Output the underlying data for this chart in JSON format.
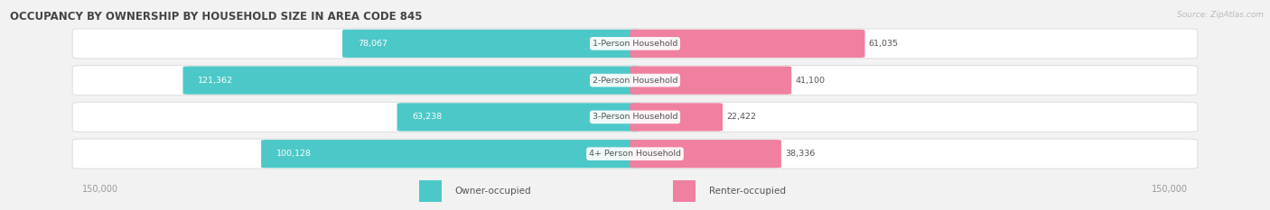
{
  "title": "OCCUPANCY BY OWNERSHIP BY HOUSEHOLD SIZE IN AREA CODE 845",
  "source": "Source: ZipAtlas.com",
  "categories": [
    "1-Person Household",
    "2-Person Household",
    "3-Person Household",
    "4+ Person Household"
  ],
  "owner_values": [
    78067,
    121362,
    63238,
    100128
  ],
  "renter_values": [
    61035,
    41100,
    22422,
    38336
  ],
  "owner_color": "#4dc8c8",
  "renter_color": "#f080a0",
  "owner_label": "Owner-occupied",
  "renter_label": "Renter-occupied",
  "axis_max": 150000,
  "bg_color": "#f2f2f2",
  "bar_bg_color": "#ffffff",
  "bar_bg_edge": "#e0e0e0",
  "title_color": "#444444",
  "value_color_dark": "#555555",
  "value_color_white": "#ffffff",
  "axis_label_color": "#999999",
  "legend_color": "#555555",
  "figsize": [
    14.06,
    2.33
  ],
  "dpi": 100
}
